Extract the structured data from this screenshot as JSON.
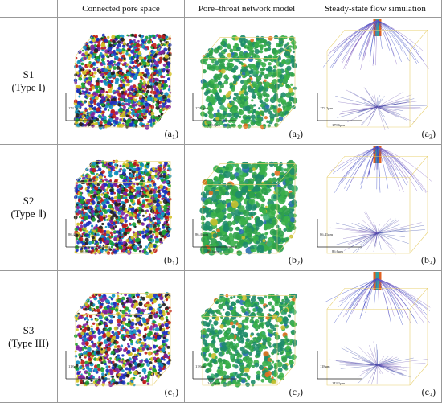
{
  "columns": [
    "Connected pore space",
    "Pore–throat network model",
    "Steady-state flow simulation"
  ],
  "rows": [
    {
      "name": "S1",
      "type": "(Type I)",
      "panels": [
        {
          "open": "(a",
          "sub": "1",
          "close": ")",
          "scale_v": "173.2μm",
          "scale_h": "179.6μm"
        },
        {
          "open": "(a",
          "sub": "2",
          "close": ")",
          "scale_v": "173.2μm",
          "scale_h": "179.6μm"
        },
        {
          "open": "(a",
          "sub": "3",
          "close": ")",
          "scale_v": "173.2μm",
          "scale_h": "179.6μm"
        }
      ]
    },
    {
      "name": "S2",
      "type": "(Type Ⅱ)",
      "panels": [
        {
          "open": "(b",
          "sub": "1",
          "close": ")",
          "scale_v": "86.41μm",
          "scale_h": "86.6μm"
        },
        {
          "open": "(b",
          "sub": "2",
          "close": ")",
          "scale_v": "86.41μm",
          "scale_h": "86.6μm"
        },
        {
          "open": "(b",
          "sub": "3",
          "close": ")",
          "scale_v": "86.41μm",
          "scale_h": "86.6μm"
        }
      ]
    },
    {
      "name": "S3",
      "type": "(Type III)",
      "panels": [
        {
          "open": "(c",
          "sub": "1",
          "close": ")",
          "scale_v": "118μm",
          "scale_h": "143.1μm"
        },
        {
          "open": "(c",
          "sub": "2",
          "close": ")",
          "scale_v": "118μm",
          "scale_h": "143.1μm"
        },
        {
          "open": "(c",
          "sub": "3",
          "close": ")",
          "scale_v": "118μm",
          "scale_h": "143.1μm"
        }
      ]
    }
  ]
}
